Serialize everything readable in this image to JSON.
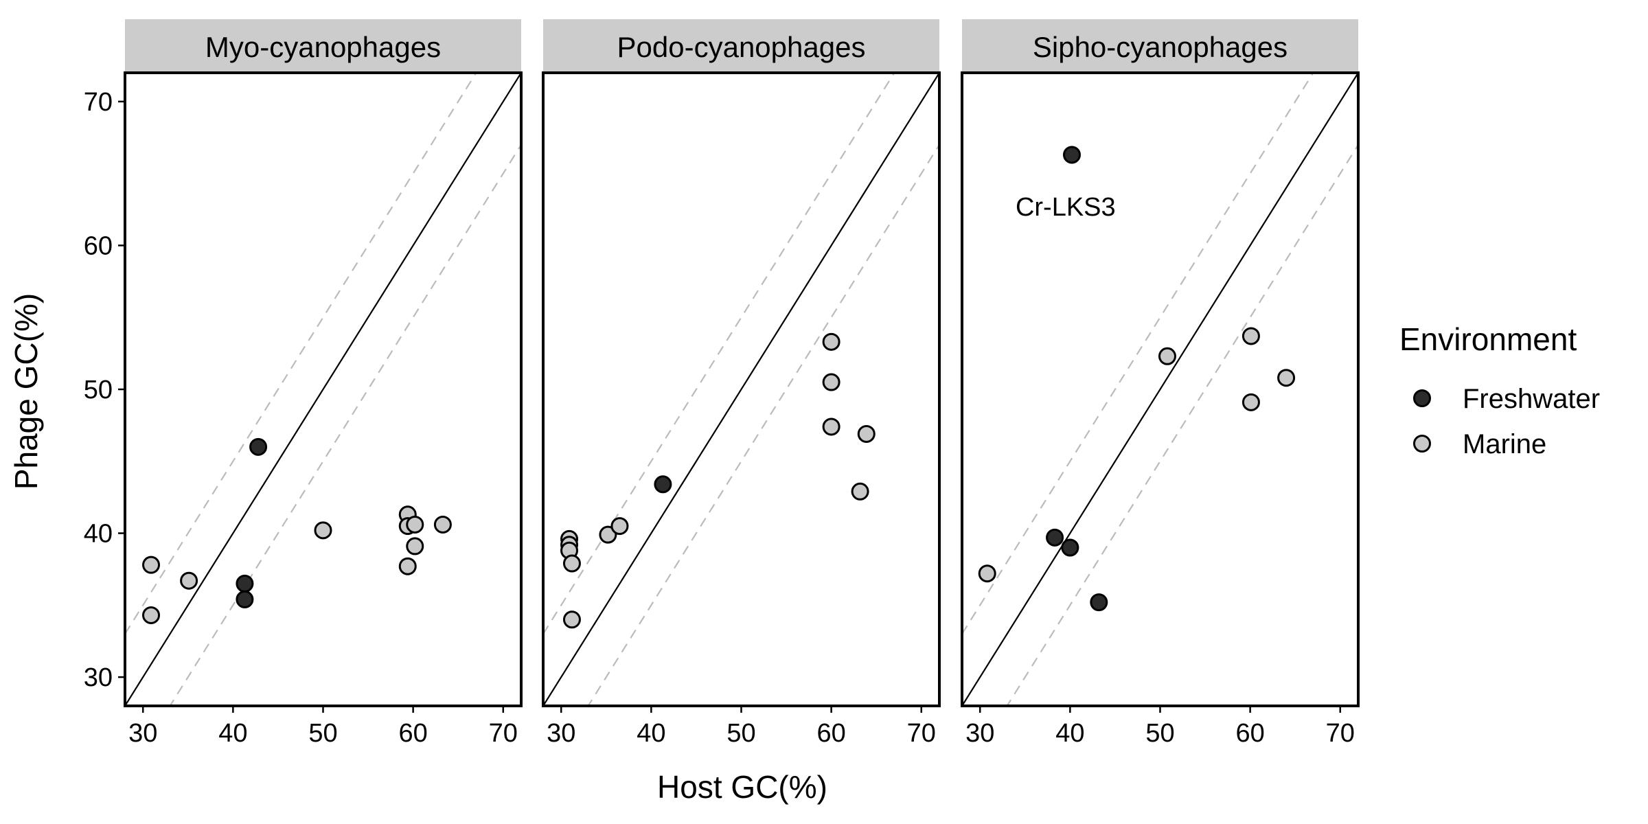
{
  "colors": {
    "freshwater": "#2b2b2b",
    "marine": "#c8c8c8",
    "strip_bg": "#cccccc",
    "dashed": "#bbbbbb"
  },
  "chart_data": {
    "type": "scatter",
    "facets": [
      "Myo-cyanophages",
      "Podo-cyanophages",
      "Sipho-cyanophages"
    ],
    "xlabel": "Host GC(%)",
    "ylabel": "Phage GC(%)",
    "xlim": [
      28,
      72
    ],
    "ylim": [
      28,
      72
    ],
    "xticks": [
      30,
      40,
      50,
      60,
      70
    ],
    "yticks": [
      30,
      40,
      50,
      60,
      70
    ],
    "reference_lines": {
      "identity": "y = x",
      "dashed_offsets": [
        5,
        -5
      ]
    },
    "legend": {
      "title": "Environment",
      "position": "right",
      "entries": [
        "Freshwater",
        "Marine"
      ]
    },
    "series": [
      {
        "name": "Freshwater",
        "points": [
          {
            "facet": "Myo-cyanophages",
            "x": 42.8,
            "y": 46.0
          },
          {
            "facet": "Myo-cyanophages",
            "x": 41.3,
            "y": 36.5
          },
          {
            "facet": "Myo-cyanophages",
            "x": 41.3,
            "y": 35.4
          },
          {
            "facet": "Podo-cyanophages",
            "x": 41.3,
            "y": 43.4
          },
          {
            "facet": "Sipho-cyanophages",
            "x": 40.2,
            "y": 66.3
          },
          {
            "facet": "Sipho-cyanophages",
            "x": 38.3,
            "y": 39.7
          },
          {
            "facet": "Sipho-cyanophages",
            "x": 40.0,
            "y": 39.0
          },
          {
            "facet": "Sipho-cyanophages",
            "x": 43.2,
            "y": 35.2
          }
        ]
      },
      {
        "name": "Marine",
        "points": [
          {
            "facet": "Myo-cyanophages",
            "x": 30.9,
            "y": 37.8
          },
          {
            "facet": "Myo-cyanophages",
            "x": 30.9,
            "y": 34.3
          },
          {
            "facet": "Myo-cyanophages",
            "x": 35.1,
            "y": 36.7
          },
          {
            "facet": "Myo-cyanophages",
            "x": 50.0,
            "y": 40.2
          },
          {
            "facet": "Myo-cyanophages",
            "x": 59.4,
            "y": 41.3
          },
          {
            "facet": "Myo-cyanophages",
            "x": 59.4,
            "y": 40.5
          },
          {
            "facet": "Myo-cyanophages",
            "x": 60.2,
            "y": 40.6
          },
          {
            "facet": "Myo-cyanophages",
            "x": 60.2,
            "y": 39.1
          },
          {
            "facet": "Myo-cyanophages",
            "x": 59.4,
            "y": 37.7
          },
          {
            "facet": "Myo-cyanophages",
            "x": 63.3,
            "y": 40.6
          },
          {
            "facet": "Podo-cyanophages",
            "x": 30.9,
            "y": 39.6
          },
          {
            "facet": "Podo-cyanophages",
            "x": 30.9,
            "y": 39.2
          },
          {
            "facet": "Podo-cyanophages",
            "x": 30.9,
            "y": 38.8
          },
          {
            "facet": "Podo-cyanophages",
            "x": 31.2,
            "y": 37.9
          },
          {
            "facet": "Podo-cyanophages",
            "x": 31.2,
            "y": 34.0
          },
          {
            "facet": "Podo-cyanophages",
            "x": 35.2,
            "y": 39.9
          },
          {
            "facet": "Podo-cyanophages",
            "x": 36.5,
            "y": 40.5
          },
          {
            "facet": "Podo-cyanophages",
            "x": 60.0,
            "y": 53.3
          },
          {
            "facet": "Podo-cyanophages",
            "x": 60.0,
            "y": 50.5
          },
          {
            "facet": "Podo-cyanophages",
            "x": 60.0,
            "y": 47.4
          },
          {
            "facet": "Podo-cyanophages",
            "x": 63.9,
            "y": 46.9
          },
          {
            "facet": "Podo-cyanophages",
            "x": 63.2,
            "y": 42.9
          },
          {
            "facet": "Sipho-cyanophages",
            "x": 30.8,
            "y": 37.2
          },
          {
            "facet": "Sipho-cyanophages",
            "x": 50.8,
            "y": 52.3
          },
          {
            "facet": "Sipho-cyanophages",
            "x": 60.1,
            "y": 53.7
          },
          {
            "facet": "Sipho-cyanophages",
            "x": 64.0,
            "y": 50.8
          },
          {
            "facet": "Sipho-cyanophages",
            "x": 60.1,
            "y": 49.1
          }
        ]
      }
    ],
    "annotations": [
      {
        "facet": "Sipho-cyanophages",
        "text": "Cr-LKS3",
        "x": 39.5,
        "y": 62.7
      }
    ]
  }
}
